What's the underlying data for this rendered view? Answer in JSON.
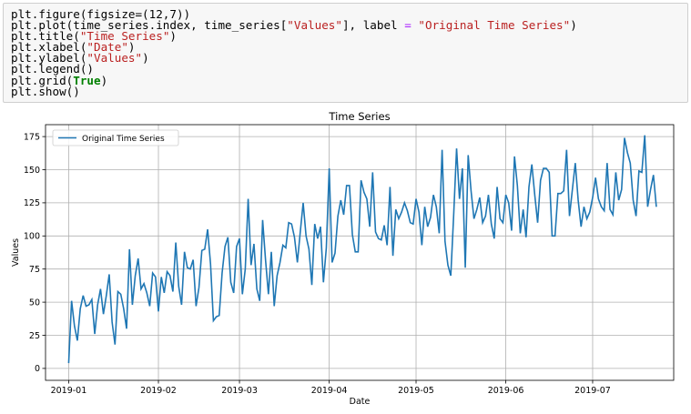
{
  "code": {
    "lines": [
      {
        "parts": [
          {
            "t": "plt.figure(figsize=(12,7))",
            "c": ""
          }
        ]
      },
      {
        "parts": [
          {
            "t": "plt.plot(time_series.index, time_series[",
            "c": ""
          },
          {
            "t": "\"Values\"",
            "c": "str"
          },
          {
            "t": "], label ",
            "c": ""
          },
          {
            "t": "=",
            "c": "op"
          },
          {
            "t": " ",
            "c": ""
          },
          {
            "t": "\"Original Time Series\"",
            "c": "str"
          },
          {
            "t": ")",
            "c": ""
          }
        ]
      },
      {
        "parts": [
          {
            "t": "plt.title(",
            "c": ""
          },
          {
            "t": "\"Time Series\"",
            "c": "str"
          },
          {
            "t": ")",
            "c": ""
          }
        ]
      },
      {
        "parts": [
          {
            "t": "plt.xlabel(",
            "c": ""
          },
          {
            "t": "\"Date\"",
            "c": "str"
          },
          {
            "t": ")",
            "c": ""
          }
        ]
      },
      {
        "parts": [
          {
            "t": "plt.ylabel(",
            "c": ""
          },
          {
            "t": "\"Values\"",
            "c": "str"
          },
          {
            "t": ")",
            "c": ""
          }
        ]
      },
      {
        "parts": [
          {
            "t": "plt.legend()",
            "c": ""
          }
        ]
      },
      {
        "parts": [
          {
            "t": "plt.grid(",
            "c": ""
          },
          {
            "t": "True",
            "c": "kw"
          },
          {
            "t": ")",
            "c": ""
          }
        ]
      },
      {
        "parts": [
          {
            "t": "plt.show()",
            "c": ""
          }
        ]
      }
    ]
  },
  "colors": {
    "line": "#1f77b4",
    "grid": "#b0b0b0",
    "string": "#ba2121",
    "operator": "#aa22ff",
    "keyword": "#008000",
    "cell_background": "#f7f7f7"
  },
  "chart_data": {
    "type": "line",
    "title": "Time Series",
    "xlabel": "Date",
    "ylabel": "Values",
    "grid": true,
    "legend_position": "upper-left",
    "x_start": "2019-01-01",
    "x_frequency": "daily",
    "xlim": [
      "2018-12-24",
      "2019-07-29"
    ],
    "ylim": [
      -9,
      184
    ],
    "xticks": [
      "2019-01-01",
      "2019-02-01",
      "2019-03-01",
      "2019-04-01",
      "2019-05-01",
      "2019-06-01",
      "2019-07-01"
    ],
    "xtick_labels": [
      "2019-01",
      "2019-02",
      "2019-03",
      "2019-04",
      "2019-05",
      "2019-06",
      "2019-07"
    ],
    "yticks": [
      0,
      25,
      50,
      75,
      100,
      125,
      150,
      175
    ],
    "ytick_labels": [
      "0",
      "25",
      "50",
      "75",
      "100",
      "125",
      "150",
      "175"
    ],
    "series": [
      {
        "name": "Original Time Series",
        "values": [
          4,
          51,
          32,
          21,
          45,
          55,
          47,
          48,
          52,
          26,
          48,
          60,
          41,
          55,
          71,
          35,
          18,
          58,
          56,
          45,
          30,
          90,
          48,
          70,
          83,
          60,
          64,
          57,
          47,
          72,
          69,
          43,
          69,
          57,
          73,
          70,
          58,
          95,
          62,
          48,
          88,
          76,
          75,
          82,
          47,
          61,
          89,
          90,
          105,
          79,
          36,
          39,
          40,
          72,
          92,
          99,
          65,
          57,
          92,
          98,
          56,
          75,
          128,
          78,
          94,
          60,
          51,
          112,
          82,
          56,
          88,
          47,
          70,
          80,
          93,
          91,
          110,
          109,
          99,
          80,
          103,
          125,
          100,
          90,
          63,
          109,
          98,
          107,
          65,
          91,
          151,
          80,
          87,
          115,
          127,
          116,
          138,
          138,
          101,
          88,
          88,
          142,
          133,
          128,
          107,
          148,
          103,
          98,
          97,
          108,
          93,
          137,
          85,
          120,
          113,
          118,
          125,
          119,
          110,
          109,
          128,
          118,
          93,
          122,
          107,
          114,
          131,
          122,
          102,
          165,
          96,
          78,
          70,
          116,
          166,
          128,
          151,
          76,
          161,
          134,
          113,
          120,
          129,
          110,
          115,
          131,
          109,
          98,
          137,
          113,
          110,
          131,
          125,
          104,
          160,
          138,
          102,
          120,
          99,
          137,
          154,
          131,
          110,
          142,
          151,
          151,
          148,
          100,
          100,
          132,
          132,
          134,
          165,
          115,
          135,
          155,
          127,
          107,
          122,
          113,
          118,
          129,
          144,
          128,
          122,
          119,
          155,
          120,
          116,
          148,
          127,
          135,
          174,
          163,
          155,
          127,
          115,
          149,
          148,
          176,
          122,
          135,
          146,
          122
        ]
      }
    ]
  }
}
